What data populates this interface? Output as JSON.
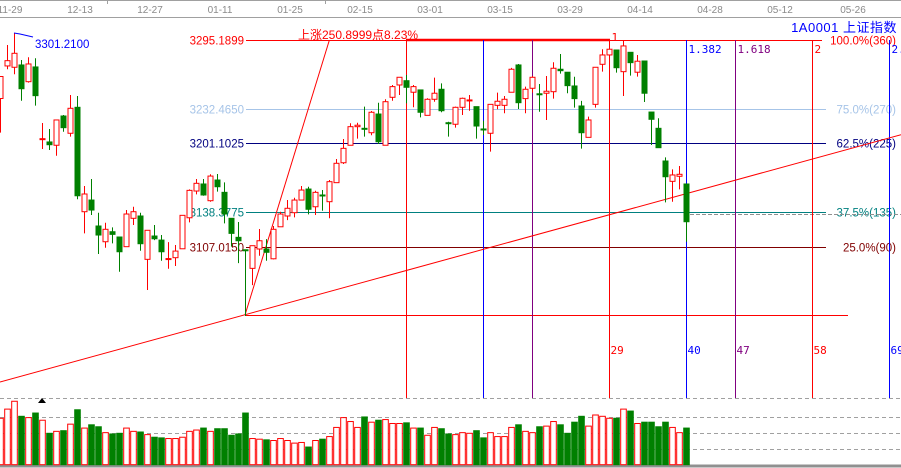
{
  "header": {
    "symbol": "1A0001 上证指数",
    "date_ticks": [
      "11-29",
      "12-13",
      "12-27",
      "01-11",
      "01-25",
      "02-15",
      "03-01",
      "03-15",
      "03-29",
      "04-14",
      "04-28",
      "05-12",
      "05-26"
    ]
  },
  "colors": {
    "up": "#ff0000",
    "down": "#008000",
    "time_red": "#ff0000",
    "time_blue": "#0000ff",
    "time_purple": "#800080",
    "level_100": "#ff0000",
    "level_75": "#a6c4e8",
    "level_625": "#000080",
    "level_375": "#008080",
    "level_25": "#800000",
    "grid": "#a0a0a0"
  },
  "annotations": {
    "high_label": "3301.2100",
    "rise_label": "上涨250.8999点8.23%",
    "swing_low": 3044.29,
    "swing_high": 3295.1899
  },
  "chart_data": {
    "type": "candlestick",
    "title": "",
    "x_tick_labels": [
      "11-29",
      "12-13",
      "12-27",
      "01-11",
      "01-25",
      "02-15",
      "03-01",
      "03-15",
      "03-29",
      "04-14",
      "04-28",
      "05-12",
      "05-26"
    ],
    "ohlc_columns": [
      "open",
      "high",
      "low",
      "close"
    ],
    "candles": [
      [
        3242,
        3262,
        3211,
        3262
      ],
      [
        3271.6,
        3290.7,
        3268.6,
        3276.4
      ],
      [
        3270.4,
        3301.21,
        3264,
        3283.1
      ],
      [
        3272.5,
        3277,
        3240,
        3250.9
      ],
      [
        3257.3,
        3279.5,
        3256.4,
        3273.4
      ],
      [
        3270.7,
        3278.6,
        3235.5,
        3244.6
      ],
      [
        3204.9,
        3219.7,
        3196.1,
        3205.5
      ],
      [
        3202.5,
        3214.3,
        3195.2,
        3200.0
      ],
      [
        3199.5,
        3222.5,
        3190,
        3222.5
      ],
      [
        3226.1,
        3227,
        3211.8,
        3215.5
      ],
      [
        3210.4,
        3245.2,
        3207.3,
        3233.1
      ],
      [
        3234,
        3244.3,
        3150.4,
        3153.6
      ],
      [
        3139.1,
        3162.5,
        3119.4,
        3155.2
      ],
      [
        3149.7,
        3168.8,
        3136.1,
        3140.6
      ],
      [
        3126.1,
        3138.2,
        3100.6,
        3117.9
      ],
      [
        3111.8,
        3129.1,
        3106.3,
        3123.1
      ],
      [
        3120.9,
        3124.9,
        3110.3,
        3118.5
      ],
      [
        3116.1,
        3116.1,
        3084.5,
        3102.7
      ],
      [
        3107.3,
        3140.6,
        3107.3,
        3137
      ],
      [
        3133.1,
        3143.6,
        3127,
        3139.1
      ],
      [
        3135.2,
        3138.2,
        3103.6,
        3110
      ],
      [
        3095.8,
        3122.2,
        3067.9,
        3122.2
      ],
      [
        3117,
        3127,
        3113.3,
        3114.5
      ],
      [
        3113.3,
        3117.9,
        3094.5,
        3102.7
      ],
      [
        3095.8,
        3111.5,
        3087.2,
        3096.5
      ],
      [
        3097.3,
        3108.8,
        3089.7,
        3103.3
      ],
      [
        3105.4,
        3136.1,
        3105.4,
        3135.8
      ],
      [
        3133.6,
        3159.4,
        3129.4,
        3158.5
      ],
      [
        3157.9,
        3168.8,
        3154.9,
        3164.9
      ],
      [
        3164.3,
        3168.8,
        3153.6,
        3154.3
      ],
      [
        3149.1,
        3173.1,
        3148.2,
        3171.5
      ],
      [
        3167.9,
        3173.4,
        3157.3,
        3161.8
      ],
      [
        3156.7,
        3165.8,
        3128.5,
        3137
      ],
      [
        3133.1,
        3133.1,
        3107.3,
        3119.4
      ],
      [
        3115.8,
        3129.7,
        3092.4,
        3112.7
      ],
      [
        3104.5,
        3104.5,
        3044.29,
        3103.6
      ],
      [
        3087.6,
        3108.2,
        3072.4,
        3108.2
      ],
      [
        3105.2,
        3123.4,
        3099.1,
        3112.7
      ],
      [
        3105.2,
        3114.2,
        3094.5,
        3102.2
      ],
      [
        3096.3,
        3126.1,
        3095.8,
        3123.1
      ],
      [
        3125.4,
        3139.1,
        3125.4,
        3137
      ],
      [
        3135.2,
        3149.7,
        3131.5,
        3142.2
      ],
      [
        3138.2,
        3151.8,
        3134,
        3149.7
      ],
      [
        3149.7,
        3162.5,
        3149.7,
        3158.8
      ],
      [
        3159.7,
        3161.8,
        3136.7,
        3141.3
      ],
      [
        3143.6,
        3158.2,
        3136.1,
        3156.7
      ],
      [
        3154.3,
        3158.8,
        3140,
        3153.6
      ],
      [
        3148.2,
        3167.9,
        3133.1,
        3166.4
      ],
      [
        3165.5,
        3187,
        3165.5,
        3183.1
      ],
      [
        3183.6,
        3205.2,
        3182.5,
        3196.7
      ],
      [
        3199.5,
        3219.5,
        3199.5,
        3216.4
      ],
      [
        3216.4,
        3220,
        3205.5,
        3217.7
      ],
      [
        3214.9,
        3234.6,
        3207.3,
        3214
      ],
      [
        3210.9,
        3230.7,
        3208.6,
        3229.5
      ],
      [
        3227.9,
        3238.2,
        3200.7,
        3202.7
      ],
      [
        3199.5,
        3241.3,
        3199.5,
        3239.1
      ],
      [
        3243.1,
        3254.3,
        3240,
        3252.8
      ],
      [
        3254.3,
        3261.3,
        3245.2,
        3261.3
      ],
      [
        3258.2,
        3263.4,
        3237.7,
        3252.2
      ],
      [
        3247.7,
        3254.3,
        3234,
        3252.8
      ],
      [
        3249.8,
        3249.8,
        3224.9,
        3229.5
      ],
      [
        3226.7,
        3242.2,
        3226.7,
        3241.3
      ],
      [
        3241.3,
        3261,
        3239.1,
        3246.8
      ],
      [
        3250.4,
        3255.8,
        3229.5,
        3230.9
      ],
      [
        3220,
        3220.9,
        3207.3,
        3219.7
      ],
      [
        3218.6,
        3234.6,
        3215.5,
        3234
      ],
      [
        3234,
        3242.8,
        3227,
        3242.2
      ],
      [
        3240.4,
        3245.2,
        3230.9,
        3240.7
      ],
      [
        3234.6,
        3234.6,
        3205.5,
        3217
      ],
      [
        3214.3,
        3221.8,
        3208.8,
        3214
      ],
      [
        3210.4,
        3236.7,
        3193.7,
        3236.7
      ],
      [
        3235.8,
        3247.3,
        3232.2,
        3239.5
      ],
      [
        3235.8,
        3244.3,
        3228.6,
        3241.3
      ],
      [
        3247.7,
        3269.8,
        3247.7,
        3268.6
      ],
      [
        3272.5,
        3273.4,
        3232.5,
        3238.2
      ],
      [
        3241.9,
        3252.8,
        3228.6,
        3250.4
      ],
      [
        3251.3,
        3262.5,
        3247.3,
        3261.3
      ],
      [
        3246.3,
        3255.2,
        3230,
        3246.1
      ],
      [
        3246.8,
        3262.5,
        3222.5,
        3248.6
      ],
      [
        3248.2,
        3275,
        3241.9,
        3269.5
      ],
      [
        3268.6,
        3282.5,
        3264.6,
        3267.3
      ],
      [
        3265.9,
        3265.9,
        3246.8,
        3253.7
      ],
      [
        3253.4,
        3261.8,
        3233.7,
        3241.9
      ],
      [
        3235.2,
        3239.8,
        3196.4,
        3210.9
      ],
      [
        3206.7,
        3225.5,
        3206.7,
        3222.5
      ],
      [
        3236.7,
        3270.4,
        3233.7,
        3270.4
      ],
      [
        3273.1,
        3286.8,
        3266.4,
        3281.6
      ],
      [
        3281.6,
        3287,
        3281.6,
        3286.8
      ],
      [
        3286.1,
        3286.1,
        3265.5,
        3270
      ],
      [
        3266.4,
        3295.19,
        3244.3,
        3289.8
      ],
      [
        3284,
        3284,
        3262.8,
        3274.6
      ],
      [
        3265.9,
        3281.6,
        3261.9,
        3275.9
      ],
      [
        3276.1,
        3276.1,
        3238.8,
        3246.8
      ],
      [
        3229.7,
        3229.7,
        3199.7,
        3223.1
      ],
      [
        3214.9,
        3224,
        3197.3,
        3197.3
      ],
      [
        3185.2,
        3188.5,
        3147.6,
        3170.9
      ],
      [
        3166.7,
        3177.6,
        3148.2,
        3172.5
      ],
      [
        3171.3,
        3180.6,
        3159.4,
        3173.1
      ],
      [
        3164.3,
        3164.3,
        3111.8,
        3130
      ]
    ],
    "volume_relative": [
      71,
      85,
      97,
      74,
      72,
      79,
      68,
      48,
      51,
      52,
      62,
      84,
      56,
      61,
      58,
      49,
      47,
      48,
      56,
      51,
      50,
      46,
      42,
      41,
      40,
      40,
      42,
      51,
      53,
      56,
      51,
      55,
      55,
      45,
      47,
      79,
      40,
      39,
      38,
      37,
      40,
      37,
      33,
      34,
      27,
      37,
      39,
      43,
      57,
      72,
      66,
      57,
      73,
      65,
      68,
      69,
      63,
      63,
      64,
      56,
      56,
      45,
      57,
      55,
      47,
      46,
      49,
      48,
      52,
      41,
      49,
      43,
      43,
      57,
      61,
      51,
      49,
      58,
      59,
      66,
      61,
      48,
      65,
      74,
      59,
      76,
      74,
      71,
      71,
      85,
      82,
      63,
      65,
      65,
      58,
      65,
      57,
      49,
      56
    ],
    "price_levels": [
      {
        "price": 3295.1899,
        "label": "3295.1899",
        "pct_label": "100.0%(360)",
        "color": "#ff0000"
      },
      {
        "price": 3232.465,
        "label": "3232.4650",
        "pct_label": "75.0%(270)",
        "color": "#a6c4e8"
      },
      {
        "price": 3201.1025,
        "label": "3201.1025",
        "pct_label": "62.5%(225)",
        "color": "#000080"
      },
      {
        "price": 3138.3775,
        "label": "3138.3775",
        "pct_label": "37.5%(135)",
        "color": "#008080"
      },
      {
        "price": 3107.015,
        "label": "3107.0150",
        "pct_label": "25.0%(90)",
        "color": "#800000"
      }
    ],
    "time_fib": {
      "start_bar": 58,
      "lines": [
        {
          "bars": 0,
          "ratio_label": "",
          "count_label": "",
          "color": "#ff0000"
        },
        {
          "bars": 11,
          "ratio_label": "",
          "count_label": "",
          "color": "#0000ff"
        },
        {
          "bars": 18,
          "ratio_label": "",
          "count_label": "",
          "color": "#800080"
        },
        {
          "bars": 29,
          "ratio_label": "1",
          "count_label": "29",
          "color": "#ff0000"
        },
        {
          "bars": 40,
          "ratio_label": "1.382",
          "count_label": "40",
          "color": "#0000ff"
        },
        {
          "bars": 47,
          "ratio_label": "1.618",
          "count_label": "47",
          "color": "#800080"
        },
        {
          "bars": 58,
          "ratio_label": "2",
          "count_label": "58",
          "color": "#ff0000"
        },
        {
          "bars": 69,
          "ratio_label": "2.",
          "count_label": "69",
          "color": "#0000ff"
        }
      ]
    },
    "last_price_line": 3130,
    "grid": true,
    "legend": "none"
  }
}
